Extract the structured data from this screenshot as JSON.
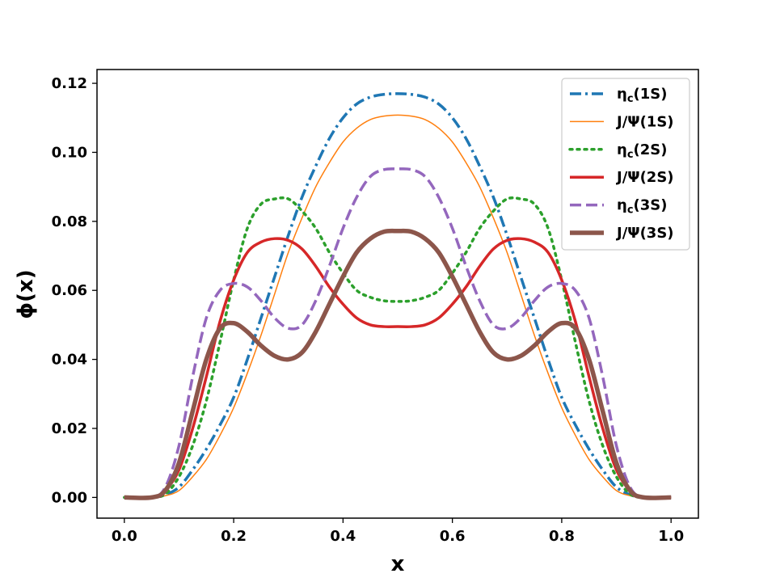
{
  "chart_data": {
    "type": "line",
    "title": "",
    "xlabel": "x",
    "ylabel": "ϕ(x)",
    "xlim": [
      -0.05,
      1.05
    ],
    "ylim": [
      -0.006,
      0.124
    ],
    "xticks": [
      0.0,
      0.2,
      0.4,
      0.6,
      0.8,
      1.0
    ],
    "xtick_labels": [
      "0.0",
      "0.2",
      "0.4",
      "0.6",
      "0.8",
      "1.0"
    ],
    "yticks": [
      0.0,
      0.02,
      0.04,
      0.06,
      0.08,
      0.1,
      0.12
    ],
    "ytick_labels": [
      "0.00",
      "0.02",
      "0.04",
      "0.06",
      "0.08",
      "0.10",
      "0.12"
    ],
    "grid": false,
    "legend_position": "top-right",
    "x": [
      0.0,
      0.05,
      0.075,
      0.1,
      0.125,
      0.15,
      0.175,
      0.2,
      0.225,
      0.25,
      0.275,
      0.3,
      0.325,
      0.35,
      0.375,
      0.4,
      0.425,
      0.45,
      0.475,
      0.5,
      0.525,
      0.55,
      0.575,
      0.6,
      0.625,
      0.65,
      0.675,
      0.7,
      0.725,
      0.75,
      0.775,
      0.8,
      0.825,
      0.85,
      0.875,
      0.9,
      0.925,
      0.95,
      1.0
    ],
    "series": [
      {
        "name": "ηc(1S)",
        "label_main": "η",
        "label_sub": "c",
        "label_tail": "(1S)",
        "color": "#1f77b4",
        "style": "dashdot",
        "width": 3.5,
        "values": [
          0.0,
          0.0,
          0.0008,
          0.003,
          0.008,
          0.014,
          0.021,
          0.029,
          0.04,
          0.052,
          0.064,
          0.076,
          0.087,
          0.096,
          0.104,
          0.11,
          0.114,
          0.116,
          0.1168,
          0.117,
          0.1168,
          0.116,
          0.114,
          0.11,
          0.104,
          0.096,
          0.087,
          0.076,
          0.064,
          0.052,
          0.04,
          0.029,
          0.021,
          0.014,
          0.008,
          0.003,
          0.0008,
          0.0,
          0.0
        ]
      },
      {
        "name": "J/Ψ(1S)",
        "label_main": "J/Ψ(1S)",
        "label_sub": "",
        "label_tail": "",
        "color": "#ff7f0e",
        "style": "solid",
        "width": 1.5,
        "values": [
          0.0,
          0.0,
          0.0005,
          0.002,
          0.006,
          0.011,
          0.018,
          0.026,
          0.036,
          0.047,
          0.059,
          0.071,
          0.081,
          0.09,
          0.097,
          0.103,
          0.107,
          0.1095,
          0.1105,
          0.1108,
          0.1105,
          0.1095,
          0.107,
          0.103,
          0.097,
          0.09,
          0.081,
          0.071,
          0.059,
          0.047,
          0.036,
          0.026,
          0.018,
          0.011,
          0.006,
          0.002,
          0.0005,
          0.0,
          0.0
        ]
      },
      {
        "name": "ηc(2S)",
        "label_main": "η",
        "label_sub": "c",
        "label_tail": "(2S)",
        "color": "#2ca02c",
        "style": "dotted",
        "width": 3.5,
        "values": [
          0.0,
          0.0,
          0.001,
          0.006,
          0.015,
          0.028,
          0.045,
          0.063,
          0.078,
          0.085,
          0.0865,
          0.0865,
          0.083,
          0.078,
          0.071,
          0.065,
          0.06,
          0.058,
          0.057,
          0.0568,
          0.057,
          0.058,
          0.06,
          0.065,
          0.071,
          0.078,
          0.083,
          0.0865,
          0.0865,
          0.085,
          0.078,
          0.063,
          0.045,
          0.028,
          0.015,
          0.006,
          0.001,
          0.0,
          0.0
        ]
      },
      {
        "name": "J/Ψ(2S)",
        "label_main": "J/Ψ(2S)",
        "label_sub": "",
        "label_tail": "",
        "color": "#d62728",
        "style": "solid",
        "width": 3.5,
        "values": [
          0.0,
          0.0,
          0.002,
          0.008,
          0.02,
          0.035,
          0.051,
          0.063,
          0.071,
          0.074,
          0.075,
          0.0745,
          0.072,
          0.067,
          0.061,
          0.056,
          0.052,
          0.05,
          0.0495,
          0.0495,
          0.0495,
          0.05,
          0.052,
          0.056,
          0.061,
          0.067,
          0.072,
          0.0745,
          0.075,
          0.074,
          0.071,
          0.063,
          0.051,
          0.035,
          0.02,
          0.008,
          0.002,
          0.0,
          0.0
        ]
      },
      {
        "name": "ηc(3S)",
        "label_main": "η",
        "label_sub": "c",
        "label_tail": "(3S)",
        "color": "#9467bd",
        "style": "dashed",
        "width": 3.5,
        "values": [
          0.0,
          0.0,
          0.003,
          0.015,
          0.035,
          0.052,
          0.06,
          0.062,
          0.061,
          0.057,
          0.052,
          0.049,
          0.05,
          0.057,
          0.067,
          0.078,
          0.087,
          0.093,
          0.095,
          0.0952,
          0.095,
          0.093,
          0.087,
          0.078,
          0.067,
          0.057,
          0.05,
          0.049,
          0.052,
          0.057,
          0.061,
          0.062,
          0.06,
          0.052,
          0.035,
          0.015,
          0.003,
          0.0,
          0.0
        ]
      },
      {
        "name": "J/Ψ(3S)",
        "label_main": "J/Ψ(3S)",
        "label_sub": "",
        "label_tail": "",
        "color": "#8c564b",
        "style": "solid",
        "width": 5.5,
        "values": [
          0.0,
          0.0,
          0.002,
          0.01,
          0.025,
          0.04,
          0.049,
          0.0505,
          0.048,
          0.044,
          0.041,
          0.04,
          0.042,
          0.048,
          0.056,
          0.064,
          0.071,
          0.075,
          0.077,
          0.0772,
          0.077,
          0.075,
          0.071,
          0.064,
          0.056,
          0.048,
          0.042,
          0.04,
          0.041,
          0.044,
          0.048,
          0.0505,
          0.049,
          0.04,
          0.025,
          0.01,
          0.002,
          0.0,
          0.0
        ]
      }
    ]
  }
}
